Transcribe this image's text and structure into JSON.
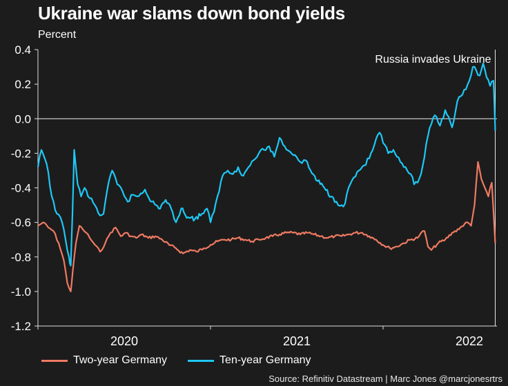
{
  "title": "Ukraine war slams down bond yields",
  "subtitle": "Percent",
  "source": "Source: Refinitiv Datastream | Marc Jones @marcjonesrtrs",
  "chart_data": {
    "type": "line",
    "title": "Ukraine war slams down bond yields",
    "ylabel": "Percent",
    "ylim": [
      -1.2,
      0.4
    ],
    "yticks": [
      {
        "value": 0.4,
        "label": "0.4"
      },
      {
        "value": 0.2,
        "label": "0.2"
      },
      {
        "value": 0.0,
        "label": "0.0"
      },
      {
        "value": -0.2,
        "label": "-0.2"
      },
      {
        "value": -0.4,
        "label": "-0.4"
      },
      {
        "value": -0.6,
        "label": "-0.6"
      },
      {
        "value": -0.8,
        "label": "-0.8"
      },
      {
        "value": -1.0,
        "label": "-1.0"
      },
      {
        "value": -1.2,
        "label": "-1.2"
      }
    ],
    "xlim": [
      2019.5,
      2022.16
    ],
    "xticks": [
      {
        "value": 2020,
        "label": "2020"
      },
      {
        "value": 2021,
        "label": "2021"
      },
      {
        "value": 2022,
        "label": "2022"
      }
    ],
    "minor_xticks": [
      2019.5,
      2020.5,
      2021.5
    ],
    "annotation": {
      "x": 2022.15,
      "label": "Russia invades Ukraine"
    },
    "colors": {
      "two_year": "#f07a62",
      "ten_year": "#1ec8f5",
      "background": "#1c1c1c"
    },
    "series": [
      {
        "name": "Two-year Germany",
        "x": [
          2019.5,
          2019.53,
          2019.56,
          2019.59,
          2019.62,
          2019.65,
          2019.67,
          2019.69,
          2019.7,
          2019.72,
          2019.74,
          2019.76,
          2019.78,
          2019.8,
          2019.83,
          2019.86,
          2019.89,
          2019.92,
          2019.95,
          2019.98,
          2020.01,
          2020.04,
          2020.07,
          2020.1,
          2020.14,
          2020.18,
          2020.22,
          2020.26,
          2020.3,
          2020.34,
          2020.38,
          2020.42,
          2020.46,
          2020.5,
          2020.54,
          2020.58,
          2020.62,
          2020.66,
          2020.7,
          2020.74,
          2020.78,
          2020.82,
          2020.86,
          2020.9,
          2020.94,
          2020.98,
          2021.02,
          2021.06,
          2021.1,
          2021.14,
          2021.18,
          2021.22,
          2021.26,
          2021.3,
          2021.34,
          2021.38,
          2021.42,
          2021.46,
          2021.5,
          2021.54,
          2021.58,
          2021.62,
          2021.66,
          2021.7,
          2021.72,
          2021.74,
          2021.76,
          2021.78,
          2021.82,
          2021.86,
          2021.9,
          2021.94,
          2021.98,
          2022.01,
          2022.03,
          2022.05,
          2022.07,
          2022.09,
          2022.11,
          2022.13,
          2022.15
        ],
        "y": [
          -0.62,
          -0.6,
          -0.63,
          -0.65,
          -0.72,
          -0.82,
          -0.95,
          -1.0,
          -0.9,
          -0.72,
          -0.62,
          -0.64,
          -0.66,
          -0.69,
          -0.73,
          -0.77,
          -0.72,
          -0.66,
          -0.63,
          -0.68,
          -0.66,
          -0.68,
          -0.69,
          -0.67,
          -0.69,
          -0.68,
          -0.7,
          -0.73,
          -0.75,
          -0.78,
          -0.76,
          -0.77,
          -0.75,
          -0.73,
          -0.71,
          -0.7,
          -0.7,
          -0.69,
          -0.7,
          -0.71,
          -0.7,
          -0.69,
          -0.68,
          -0.67,
          -0.66,
          -0.66,
          -0.67,
          -0.66,
          -0.67,
          -0.68,
          -0.69,
          -0.68,
          -0.68,
          -0.67,
          -0.66,
          -0.66,
          -0.68,
          -0.7,
          -0.73,
          -0.75,
          -0.74,
          -0.72,
          -0.7,
          -0.69,
          -0.66,
          -0.65,
          -0.74,
          -0.76,
          -0.72,
          -0.7,
          -0.66,
          -0.64,
          -0.6,
          -0.62,
          -0.5,
          -0.25,
          -0.35,
          -0.4,
          -0.45,
          -0.37,
          -0.72
        ]
      },
      {
        "name": "Ten-year Germany",
        "x": [
          2019.5,
          2019.52,
          2019.55,
          2019.58,
          2019.61,
          2019.64,
          2019.66,
          2019.68,
          2019.69,
          2019.7,
          2019.71,
          2019.73,
          2019.75,
          2019.77,
          2019.8,
          2019.83,
          2019.86,
          2019.88,
          2019.9,
          2019.93,
          2019.96,
          2019.99,
          2020.02,
          2020.05,
          2020.08,
          2020.12,
          2020.16,
          2020.2,
          2020.24,
          2020.28,
          2020.3,
          2020.33,
          2020.37,
          2020.41,
          2020.45,
          2020.48,
          2020.5,
          2020.52,
          2020.54,
          2020.57,
          2020.6,
          2020.63,
          2020.66,
          2020.69,
          2020.72,
          2020.75,
          2020.78,
          2020.81,
          2020.84,
          2020.87,
          2020.9,
          2020.93,
          2020.96,
          2020.99,
          2021.02,
          2021.05,
          2021.08,
          2021.12,
          2021.16,
          2021.2,
          2021.23,
          2021.26,
          2021.28,
          2021.3,
          2021.33,
          2021.36,
          2021.39,
          2021.42,
          2021.45,
          2021.48,
          2021.5,
          2021.53,
          2021.56,
          2021.58,
          2021.6,
          2021.62,
          2021.64,
          2021.66,
          2021.68,
          2021.7,
          2021.72,
          2021.74,
          2021.76,
          2021.78,
          2021.8,
          2021.83,
          2021.86,
          2021.88,
          2021.9,
          2021.93,
          2021.96,
          2021.98,
          2022.0,
          2022.02,
          2022.04,
          2022.06,
          2022.08,
          2022.1,
          2022.12,
          2022.14,
          2022.15
        ],
        "y": [
          -0.28,
          -0.18,
          -0.26,
          -0.45,
          -0.55,
          -0.6,
          -0.7,
          -0.8,
          -0.85,
          -0.55,
          -0.18,
          -0.38,
          -0.45,
          -0.4,
          -0.46,
          -0.5,
          -0.56,
          -0.55,
          -0.42,
          -0.3,
          -0.38,
          -0.42,
          -0.48,
          -0.44,
          -0.45,
          -0.41,
          -0.48,
          -0.52,
          -0.47,
          -0.54,
          -0.6,
          -0.52,
          -0.57,
          -0.58,
          -0.55,
          -0.52,
          -0.6,
          -0.54,
          -0.45,
          -0.33,
          -0.3,
          -0.32,
          -0.28,
          -0.33,
          -0.28,
          -0.24,
          -0.2,
          -0.18,
          -0.16,
          -0.22,
          -0.11,
          -0.16,
          -0.19,
          -0.21,
          -0.25,
          -0.24,
          -0.3,
          -0.36,
          -0.4,
          -0.45,
          -0.48,
          -0.5,
          -0.49,
          -0.4,
          -0.34,
          -0.3,
          -0.27,
          -0.23,
          -0.15,
          -0.08,
          -0.14,
          -0.2,
          -0.18,
          -0.22,
          -0.25,
          -0.28,
          -0.3,
          -0.32,
          -0.38,
          -0.37,
          -0.32,
          -0.22,
          -0.1,
          -0.03,
          0.02,
          -0.04,
          0.05,
          0.01,
          -0.05,
          0.1,
          0.14,
          0.17,
          0.22,
          0.3,
          0.28,
          0.25,
          0.32,
          0.24,
          0.19,
          0.22,
          -0.07
        ]
      }
    ]
  }
}
